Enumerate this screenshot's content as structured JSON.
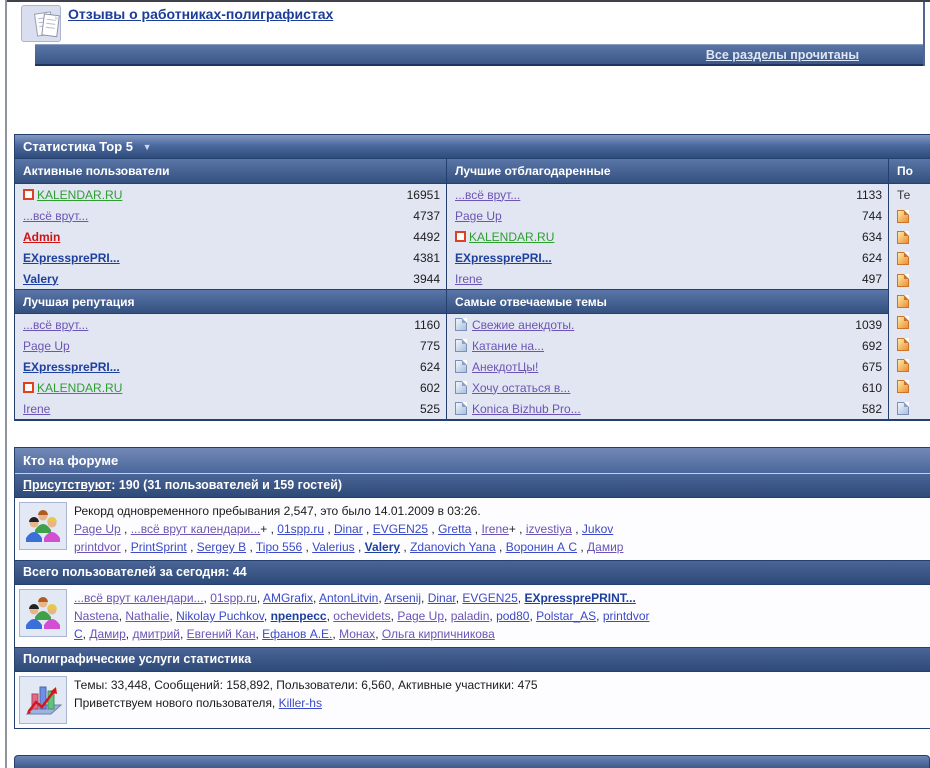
{
  "forum_section": {
    "title_link": "Отзывы о работниках-полиграфистах",
    "mark_read_link": "Все разделы прочитаны"
  },
  "stats_top5": {
    "title": "Статистика Top 5",
    "collapse_icon": "▼",
    "groups": [
      {
        "header": "Активные пользователи",
        "rows": [
          {
            "name": "KALENDAR.RU",
            "value": "16951",
            "style": "green",
            "square_icon": true
          },
          {
            "name": "...всё врут...",
            "value": "4737",
            "style": "purple"
          },
          {
            "name": "Admin",
            "value": "4492",
            "style": "red"
          },
          {
            "name": "EXpressprePRI...",
            "value": "4381",
            "style": "bold"
          },
          {
            "name": "Valery",
            "value": "3944",
            "style": "bold"
          }
        ]
      },
      {
        "header": "Лучшие отблагодаренные",
        "rows": [
          {
            "name": "...всё врут...",
            "value": "1133",
            "style": "purple"
          },
          {
            "name": "Page Up",
            "value": "744",
            "style": "purple"
          },
          {
            "name": "KALENDAR.RU",
            "value": "634",
            "style": "green",
            "square_icon": true
          },
          {
            "name": "EXpressprePRI...",
            "value": "624",
            "style": "bold"
          },
          {
            "name": "Irene",
            "value": "497",
            "style": "purple"
          }
        ]
      },
      {
        "header": "Лучшая репутация",
        "rows": [
          {
            "name": "...всё врут...",
            "value": "1160",
            "style": "purple"
          },
          {
            "name": "Page Up",
            "value": "775",
            "style": "purple"
          },
          {
            "name": "EXpressprePRI...",
            "value": "624",
            "style": "bold"
          },
          {
            "name": "KALENDAR.RU",
            "value": "602",
            "style": "green",
            "square_icon": true
          },
          {
            "name": "Irene",
            "value": "525",
            "style": "purple"
          }
        ]
      },
      {
        "header": "Самые отвечаемые темы",
        "rows": [
          {
            "name": "Свежие анекдоты.",
            "value": "1039",
            "style": "purple",
            "page_icon": "blue"
          },
          {
            "name": "Катание на...",
            "value": "692",
            "style": "purple",
            "page_icon": "blue"
          },
          {
            "name": "АнекдотЦы!",
            "value": "675",
            "style": "purple",
            "page_icon": "blue"
          },
          {
            "name": "Хочу остаться в...",
            "value": "610",
            "style": "purple",
            "page_icon": "blue"
          },
          {
            "name": "Konica Bizhub Pro...",
            "value": "582",
            "style": "purple",
            "page_icon": "blue"
          }
        ]
      }
    ],
    "partial_column": {
      "header": "По",
      "rows": [
        {
          "text": "Те"
        },
        {
          "icon": "orange"
        },
        {
          "icon": "orange"
        },
        {
          "icon": "orange"
        },
        {
          "icon": "orange"
        },
        {
          "icon": "orange"
        },
        {
          "icon": "orange"
        },
        {
          "icon": "orange"
        },
        {
          "icon": "orange"
        },
        {
          "icon": "orange"
        },
        {
          "icon": "blue"
        }
      ]
    }
  },
  "who_online": {
    "title": "Кто на форуме",
    "presence_link": "Присутствуют",
    "presence_rest": ": 190 (31 пользователей и 159 гостей)",
    "record_line": "Рекорд одновременного пребывания 2,547, это было 14.01.2009 в 03:26.",
    "online_sep": " , ",
    "online_lines": [
      [
        {
          "t": "Page Up",
          "c": "purple"
        },
        {
          "t": "...всё врут календари...",
          "c": "purple",
          "s": "+"
        },
        {
          "t": "01spp.ru",
          "c": "blue"
        },
        {
          "t": "Dinar",
          "c": "blue"
        },
        {
          "t": "EVGEN25",
          "c": "blue"
        },
        {
          "t": "Gretta",
          "c": "blue"
        },
        {
          "t": "Irene",
          "c": "purple",
          "s": "+"
        },
        {
          "t": "izvestiya",
          "c": "purple"
        },
        {
          "t": "Jukov",
          "c": "blue"
        }
      ],
      [
        {
          "t": "printdvor",
          "c": "purple"
        },
        {
          "t": "PrintSprint",
          "c": "blue"
        },
        {
          "t": "Sergey B",
          "c": "blue"
        },
        {
          "t": "Tipo 556",
          "c": "blue"
        },
        {
          "t": "Valerius",
          "c": "blue"
        },
        {
          "t": "Valery",
          "c": "bold"
        },
        {
          "t": "Zdanovich Yana",
          "c": "blue"
        },
        {
          "t": "Воронин А С",
          "c": "blue"
        },
        {
          "t": "Дамир",
          "c": "purple"
        }
      ]
    ],
    "today_bar": "Всего пользователей за сегодня: 44",
    "today_sep": ", ",
    "today_lines": [
      [
        {
          "t": "...всё врут календари...",
          "c": "purple"
        },
        {
          "t": "01spp.ru",
          "c": "purple"
        },
        {
          "t": "AMGrafix",
          "c": "blue"
        },
        {
          "t": "AntonLitvin",
          "c": "blue"
        },
        {
          "t": "Arsenij",
          "c": "blue"
        },
        {
          "t": "Dinar",
          "c": "blue"
        },
        {
          "t": "EVGEN25",
          "c": "blue"
        },
        {
          "t": "EXpressprePRINT...",
          "c": "bold"
        }
      ],
      [
        {
          "t": "Nastena",
          "c": "purple"
        },
        {
          "t": "Nathalie",
          "c": "purple"
        },
        {
          "t": "Nikolay Puchkov",
          "c": "blue"
        },
        {
          "t": "npenpecc",
          "c": "bold"
        },
        {
          "t": "ochevidets",
          "c": "purple"
        },
        {
          "t": "Page Up",
          "c": "purple"
        },
        {
          "t": "paladin",
          "c": "purple"
        },
        {
          "t": "pod80",
          "c": "blue"
        },
        {
          "t": "Polstar_AS",
          "c": "blue"
        },
        {
          "t": "printdvor",
          "c": "blue"
        }
      ],
      [
        {
          "t": "С",
          "c": "blue"
        },
        {
          "t": "Дамир",
          "c": "purple"
        },
        {
          "t": "дмитрий",
          "c": "purple"
        },
        {
          "t": "Евгений Кан",
          "c": "purple"
        },
        {
          "t": "Ефанов А.Е.",
          "c": "blue"
        },
        {
          "t": "Монах",
          "c": "purple"
        },
        {
          "t": "Ольга кирпичникова",
          "c": "purple"
        }
      ]
    ],
    "services_bar": "Полиграфические услуги статистика",
    "board_stats": "Темы: 33,448, Сообщений: 158,892, Пользователи: 6,560, Активные участники: 475",
    "welcome_prefix": "Приветствуем нового пользователя, ",
    "welcome_link": "Killer-hs"
  }
}
